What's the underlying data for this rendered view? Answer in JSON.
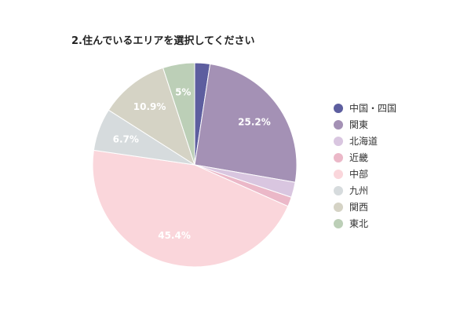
{
  "chart_data": {
    "type": "pie",
    "title": "2.住んでいるエリアを選択してください",
    "categories": [
      "中国・四国",
      "関東",
      "北海道",
      "近畿",
      "中部",
      "九州",
      "関西",
      "東北"
    ],
    "values": [
      2.4,
      25.2,
      2.4,
      1.5,
      45.4,
      6.7,
      10.9,
      5.0
    ],
    "data_labels": [
      "",
      "25.2%",
      "",
      "",
      "45.4%",
      "6.7%",
      "10.9%",
      "5%"
    ],
    "colors": [
      "#5d5e9f",
      "#a491b5",
      "#d9c6e0",
      "#ebb8c8",
      "#fad6db",
      "#d6dbdd",
      "#d5d3c5",
      "#bccfb7"
    ],
    "label_color": "#ffffff",
    "start_angle": "12 o'clock",
    "direction": "clockwise",
    "legend": "right"
  }
}
